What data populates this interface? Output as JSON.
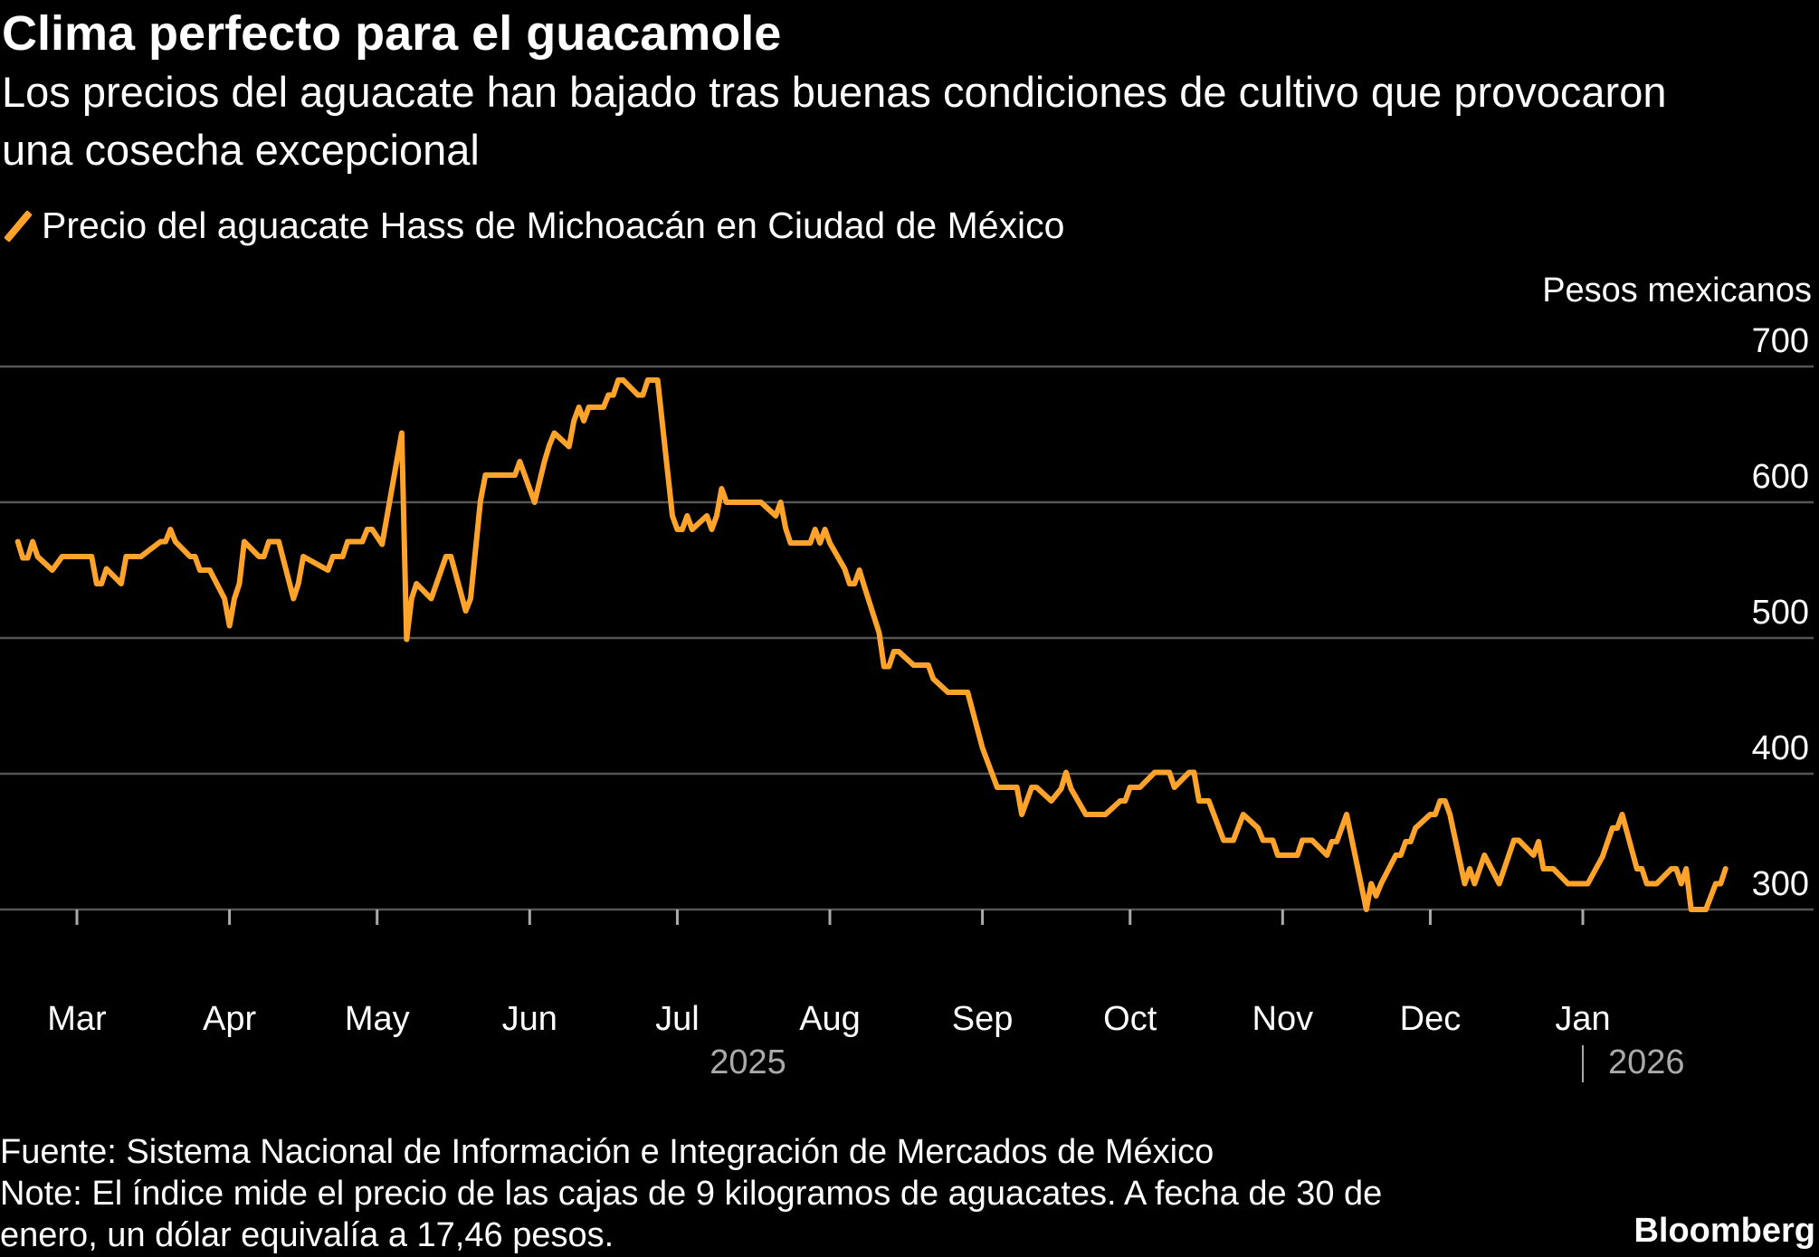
{
  "header": {
    "title": "Clima perfecto para el guacamole",
    "subtitle": "Los precios del aguacate han bajado tras buenas condiciones de cultivo que provocaron una cosecha excepcional"
  },
  "footer": {
    "source": "Fuente: Sistema Nacional de Información e Integración de Mercados de México",
    "note_line1": "Note: El índice mide el precio de las cajas de 9 kilogramos de aguacates. A fecha de 30 de",
    "note_line2": "enero, un dólar equivalía a 17,46 pesos.",
    "brand": "Bloomberg"
  },
  "chart_data": {
    "type": "line",
    "title": "Clima perfecto para el guacamole",
    "ylabel": "Pesos mexicanos",
    "xlabel": "",
    "ylim": [
      300,
      700
    ],
    "yticks": [
      700,
      600,
      500,
      400,
      300
    ],
    "xticks": [
      {
        "date": "2025-03-01",
        "label": "Mar"
      },
      {
        "date": "2025-04-01",
        "label": "Apr"
      },
      {
        "date": "2025-05-01",
        "label": "May"
      },
      {
        "date": "2025-06-01",
        "label": "Jun"
      },
      {
        "date": "2025-07-01",
        "label": "Jul"
      },
      {
        "date": "2025-08-01",
        "label": "Aug"
      },
      {
        "date": "2025-09-01",
        "label": "Sep"
      },
      {
        "date": "2025-10-01",
        "label": "Oct"
      },
      {
        "date": "2025-11-01",
        "label": "Nov"
      },
      {
        "date": "2025-12-01",
        "label": "Dec"
      },
      {
        "date": "2026-01-01",
        "label": "Jan"
      }
    ],
    "years": [
      {
        "label": "2025",
        "date": "2025-07-15"
      },
      {
        "label": "2026",
        "date": "2026-01-01"
      }
    ],
    "grid": true,
    "legend_position": "top-left",
    "colors": {
      "series": "#ffa32b",
      "grid": "#555555",
      "background": "#000000"
    },
    "series": [
      {
        "name": "Precio del aguacate Hass de Michoacán en Ciudad de México",
        "points": [
          [
            "2025-02-17",
            571
          ],
          [
            "2025-02-18",
            559
          ],
          [
            "2025-02-19",
            559
          ],
          [
            "2025-02-20",
            571
          ],
          [
            "2025-02-21",
            560
          ],
          [
            "2025-02-24",
            550
          ],
          [
            "2025-02-26",
            560
          ],
          [
            "2025-03-04",
            560
          ],
          [
            "2025-03-05",
            540
          ],
          [
            "2025-03-06",
            540
          ],
          [
            "2025-03-07",
            551
          ],
          [
            "2025-03-10",
            540
          ],
          [
            "2025-03-11",
            560
          ],
          [
            "2025-03-14",
            560
          ],
          [
            "2025-03-18",
            571
          ],
          [
            "2025-03-19",
            571
          ],
          [
            "2025-03-20",
            580
          ],
          [
            "2025-03-21",
            571
          ],
          [
            "2025-03-24",
            560
          ],
          [
            "2025-03-25",
            560
          ],
          [
            "2025-03-26",
            550
          ],
          [
            "2025-03-28",
            550
          ],
          [
            "2025-03-31",
            529
          ],
          [
            "2025-04-01",
            509
          ],
          [
            "2025-04-02",
            529
          ],
          [
            "2025-04-03",
            540
          ],
          [
            "2025-04-04",
            571
          ],
          [
            "2025-04-07",
            560
          ],
          [
            "2025-04-08",
            560
          ],
          [
            "2025-04-09",
            571
          ],
          [
            "2025-04-11",
            571
          ],
          [
            "2025-04-14",
            529
          ],
          [
            "2025-04-15",
            540
          ],
          [
            "2025-04-16",
            560
          ],
          [
            "2025-04-21",
            550
          ],
          [
            "2025-04-22",
            560
          ],
          [
            "2025-04-24",
            560
          ],
          [
            "2025-04-25",
            571
          ],
          [
            "2025-04-28",
            571
          ],
          [
            "2025-04-29",
            580
          ],
          [
            "2025-04-30",
            580
          ],
          [
            "2025-05-02",
            569
          ],
          [
            "2025-05-06",
            651
          ],
          [
            "2025-05-07",
            499
          ],
          [
            "2025-05-08",
            529
          ],
          [
            "2025-05-09",
            540
          ],
          [
            "2025-05-12",
            529
          ],
          [
            "2025-05-15",
            560
          ],
          [
            "2025-05-16",
            560
          ],
          [
            "2025-05-19",
            520
          ],
          [
            "2025-05-20",
            529
          ],
          [
            "2025-05-22",
            601
          ],
          [
            "2025-05-23",
            620
          ],
          [
            "2025-05-29",
            620
          ],
          [
            "2025-05-30",
            630
          ],
          [
            "2025-06-02",
            600
          ],
          [
            "2025-06-04",
            630
          ],
          [
            "2025-06-05",
            642
          ],
          [
            "2025-06-06",
            651
          ],
          [
            "2025-06-09",
            641
          ],
          [
            "2025-06-10",
            660
          ],
          [
            "2025-06-11",
            670
          ],
          [
            "2025-06-12",
            660
          ],
          [
            "2025-06-13",
            670
          ],
          [
            "2025-06-16",
            670
          ],
          [
            "2025-06-17",
            679
          ],
          [
            "2025-06-18",
            679
          ],
          [
            "2025-06-19",
            690
          ],
          [
            "2025-06-20",
            690
          ],
          [
            "2025-06-23",
            679
          ],
          [
            "2025-06-24",
            679
          ],
          [
            "2025-06-25",
            690
          ],
          [
            "2025-06-27",
            690
          ],
          [
            "2025-06-30",
            590
          ],
          [
            "2025-07-01",
            580
          ],
          [
            "2025-07-02",
            580
          ],
          [
            "2025-07-03",
            590
          ],
          [
            "2025-07-04",
            580
          ],
          [
            "2025-07-07",
            590
          ],
          [
            "2025-07-08",
            580
          ],
          [
            "2025-07-09",
            590
          ],
          [
            "2025-07-10",
            610
          ],
          [
            "2025-07-11",
            600
          ],
          [
            "2025-07-18",
            600
          ],
          [
            "2025-07-21",
            590
          ],
          [
            "2025-07-22",
            600
          ],
          [
            "2025-07-23",
            581
          ],
          [
            "2025-07-24",
            570
          ],
          [
            "2025-07-28",
            570
          ],
          [
            "2025-07-29",
            580
          ],
          [
            "2025-07-30",
            570
          ],
          [
            "2025-07-31",
            580
          ],
          [
            "2025-08-01",
            570
          ],
          [
            "2025-08-04",
            551
          ],
          [
            "2025-08-05",
            540
          ],
          [
            "2025-08-06",
            540
          ],
          [
            "2025-08-07",
            550
          ],
          [
            "2025-08-08",
            538
          ],
          [
            "2025-08-11",
            504
          ],
          [
            "2025-08-12",
            479
          ],
          [
            "2025-08-13",
            479
          ],
          [
            "2025-08-14",
            490
          ],
          [
            "2025-08-15",
            490
          ],
          [
            "2025-08-18",
            480
          ],
          [
            "2025-08-21",
            480
          ],
          [
            "2025-08-22",
            470
          ],
          [
            "2025-08-25",
            460
          ],
          [
            "2025-08-29",
            460
          ],
          [
            "2025-09-01",
            419
          ],
          [
            "2025-09-04",
            390
          ],
          [
            "2025-09-08",
            390
          ],
          [
            "2025-09-09",
            370
          ],
          [
            "2025-09-11",
            390
          ],
          [
            "2025-09-12",
            390
          ],
          [
            "2025-09-15",
            380
          ],
          [
            "2025-09-17",
            389
          ],
          [
            "2025-09-18",
            401
          ],
          [
            "2025-09-19",
            389
          ],
          [
            "2025-09-22",
            370
          ],
          [
            "2025-09-26",
            370
          ],
          [
            "2025-09-29",
            380
          ],
          [
            "2025-09-30",
            380
          ],
          [
            "2025-10-01",
            390
          ],
          [
            "2025-10-03",
            390
          ],
          [
            "2025-10-06",
            401
          ],
          [
            "2025-10-09",
            401
          ],
          [
            "2025-10-10",
            390
          ],
          [
            "2025-10-13",
            401
          ],
          [
            "2025-10-14",
            401
          ],
          [
            "2025-10-15",
            380
          ],
          [
            "2025-10-17",
            380
          ],
          [
            "2025-10-20",
            351
          ],
          [
            "2025-10-22",
            351
          ],
          [
            "2025-10-24",
            370
          ],
          [
            "2025-10-27",
            360
          ],
          [
            "2025-10-28",
            351
          ],
          [
            "2025-10-30",
            351
          ],
          [
            "2025-10-31",
            340
          ],
          [
            "2025-11-04",
            340
          ],
          [
            "2025-11-05",
            351
          ],
          [
            "2025-11-07",
            351
          ],
          [
            "2025-11-10",
            340
          ],
          [
            "2025-11-11",
            350
          ],
          [
            "2025-11-12",
            350
          ],
          [
            "2025-11-14",
            370
          ],
          [
            "2025-11-18",
            300
          ],
          [
            "2025-11-19",
            319
          ],
          [
            "2025-11-20",
            310
          ],
          [
            "2025-11-21",
            319
          ],
          [
            "2025-11-24",
            340
          ],
          [
            "2025-11-25",
            340
          ],
          [
            "2025-11-26",
            350
          ],
          [
            "2025-11-27",
            350
          ],
          [
            "2025-11-28",
            360
          ],
          [
            "2025-12-01",
            370
          ],
          [
            "2025-12-02",
            370
          ],
          [
            "2025-12-03",
            380
          ],
          [
            "2025-12-04",
            380
          ],
          [
            "2025-12-05",
            370
          ],
          [
            "2025-12-08",
            319
          ],
          [
            "2025-12-09",
            330
          ],
          [
            "2025-12-10",
            319
          ],
          [
            "2025-12-12",
            340
          ],
          [
            "2025-12-15",
            319
          ],
          [
            "2025-12-18",
            351
          ],
          [
            "2025-12-19",
            351
          ],
          [
            "2025-12-22",
            340
          ],
          [
            "2025-12-23",
            350
          ],
          [
            "2025-12-24",
            330
          ],
          [
            "2025-12-26",
            330
          ],
          [
            "2025-12-29",
            319
          ],
          [
            "2026-01-02",
            319
          ],
          [
            "2026-01-05",
            339
          ],
          [
            "2026-01-07",
            360
          ],
          [
            "2026-01-08",
            360
          ],
          [
            "2026-01-09",
            370
          ],
          [
            "2026-01-12",
            330
          ],
          [
            "2026-01-13",
            330
          ],
          [
            "2026-01-14",
            319
          ],
          [
            "2026-01-16",
            319
          ],
          [
            "2026-01-19",
            330
          ],
          [
            "2026-01-20",
            330
          ],
          [
            "2026-01-21",
            319
          ],
          [
            "2026-01-22",
            330
          ],
          [
            "2026-01-23",
            300
          ],
          [
            "2026-01-26",
            300
          ],
          [
            "2026-01-28",
            319
          ],
          [
            "2026-01-29",
            319
          ],
          [
            "2026-01-30",
            330
          ]
        ]
      }
    ]
  }
}
